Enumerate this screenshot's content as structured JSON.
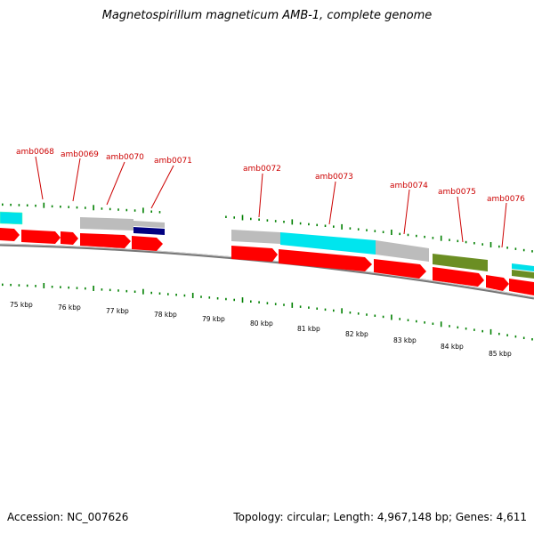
{
  "title": "Magnetospirillum magneticum AMB-1, complete genome",
  "footer": {
    "accession": "Accession: NC_007626",
    "summary": "Topology: circular; Length: 4,967,148 bp; Genes: 4,611"
  },
  "colors": {
    "cds": "#ff0000",
    "cyan_feature": "#00e5ee",
    "gray_feature": "#bbbbbb",
    "navy_feature": "#000080",
    "olive_feature": "#6b8e23",
    "backbone": "#888888",
    "ticks": "#008000",
    "label_text": "#cc0000"
  },
  "gene_labels": [
    "amb0068",
    "amb0069",
    "amb0070",
    "amb0071",
    "amb0072",
    "amb0073",
    "amb0074",
    "amb0075",
    "amb0076"
  ],
  "kbp_labels": [
    "75 kbp",
    "76 kbp",
    "77 kbp",
    "78 kbp",
    "79 kbp",
    "80 kbp",
    "81 kbp",
    "82 kbp",
    "83 kbp",
    "84 kbp",
    "85 kbp"
  ]
}
